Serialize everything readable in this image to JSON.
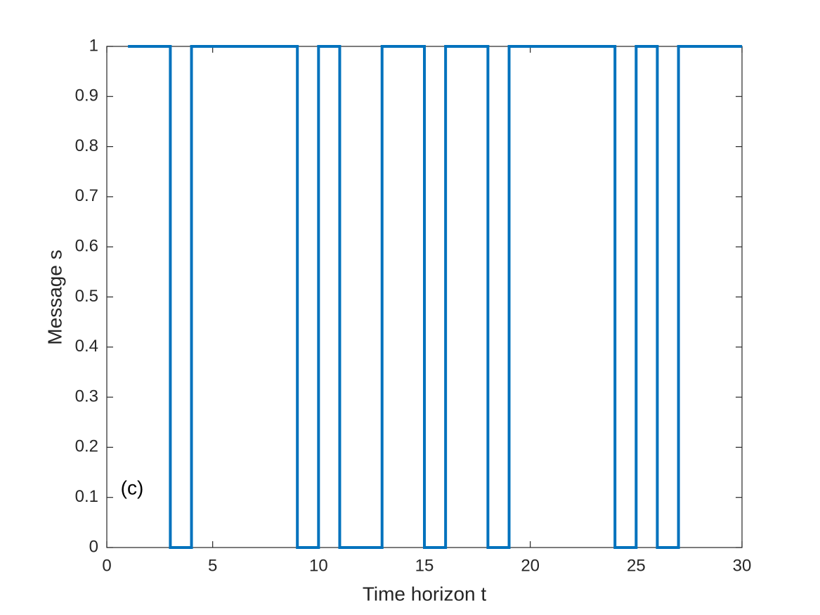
{
  "chart_data": {
    "type": "stairs",
    "xlabel": "Time horizon t",
    "ylabel": "Message s",
    "annotation": "(c)",
    "x": [
      1,
      2,
      3,
      4,
      5,
      6,
      7,
      8,
      9,
      10,
      11,
      12,
      13,
      14,
      15,
      16,
      17,
      18,
      19,
      20,
      21,
      22,
      23,
      24,
      25,
      26,
      27,
      28,
      29,
      30
    ],
    "series": [
      {
        "color": "#0072bd",
        "values": [
          1,
          1,
          0,
          1,
          1,
          1,
          1,
          1,
          0,
          1,
          0,
          0,
          1,
          1,
          0,
          1,
          1,
          0,
          1,
          1,
          1,
          1,
          1,
          0,
          1,
          0,
          1,
          1,
          1,
          1
        ]
      }
    ],
    "xlim": [
      0,
      30
    ],
    "xticks": [
      0,
      5,
      10,
      15,
      20,
      25,
      30
    ],
    "ylim": [
      0,
      1
    ],
    "yticks": [
      0,
      0.1,
      0.2,
      0.3,
      0.4,
      0.5,
      0.6,
      0.7,
      0.8,
      0.9,
      1
    ]
  }
}
